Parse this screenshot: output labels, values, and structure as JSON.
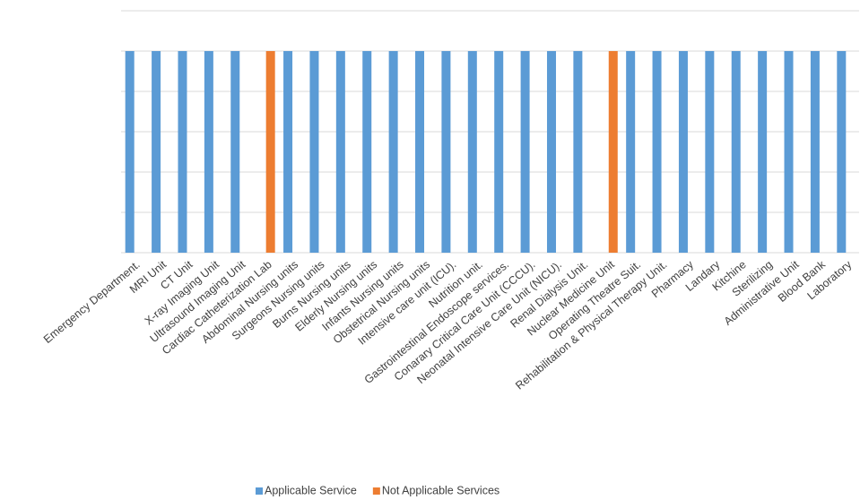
{
  "chart_data": {
    "type": "bar",
    "categories": [
      "Emergency Department.",
      "MRI Unit",
      "CT Unit",
      "X-ray Imaging Unit",
      "Ultrasound Imaging Unit",
      "Cardiac Catheterization Lab",
      "Abdominal Nursing units",
      "Surgeons Nursing units",
      "Burns Nursing units",
      "Elderly Nursing units",
      "Infants Nursing units",
      "Obstetrical Nursing units",
      "Intensive care unit (ICU).",
      "Nutrition unit.",
      "Gastrointestinal Endoscope services.",
      "Conarary Critical Care Unit (CCCU).",
      "Neonatal Intensive Care Unit (NICU).",
      "Renal Dialysis Unit.",
      "Nuclear Medicine Unit",
      "Operating Theatre Suit.",
      "Rehabilitation & Physical Therapy Unit.",
      "Pharmacy",
      "Landary",
      "Kitchine",
      "Sterilizing",
      "Administrative Unit",
      "Blood Bank",
      "Laboratory"
    ],
    "series": [
      {
        "name": "Applicable Service",
        "color": "#5b9bd5",
        "values": [
          1,
          1,
          1,
          1,
          1,
          null,
          1,
          1,
          1,
          1,
          1,
          1,
          1,
          1,
          1,
          1,
          1,
          1,
          null,
          1,
          1,
          1,
          1,
          1,
          1,
          1,
          1,
          1
        ]
      },
      {
        "name": "Not Applicable Services",
        "color": "#ed7d31",
        "values": [
          null,
          null,
          null,
          null,
          null,
          1,
          null,
          null,
          null,
          null,
          null,
          null,
          null,
          null,
          null,
          null,
          null,
          null,
          1,
          null,
          null,
          null,
          null,
          null,
          null,
          null,
          null,
          null
        ]
      }
    ],
    "ylim": [
      0,
      1.2
    ],
    "yticks": [
      0,
      0.2,
      0.4,
      0.6,
      0.8,
      1,
      1.2
    ],
    "grid": true,
    "legend": "bottom"
  }
}
